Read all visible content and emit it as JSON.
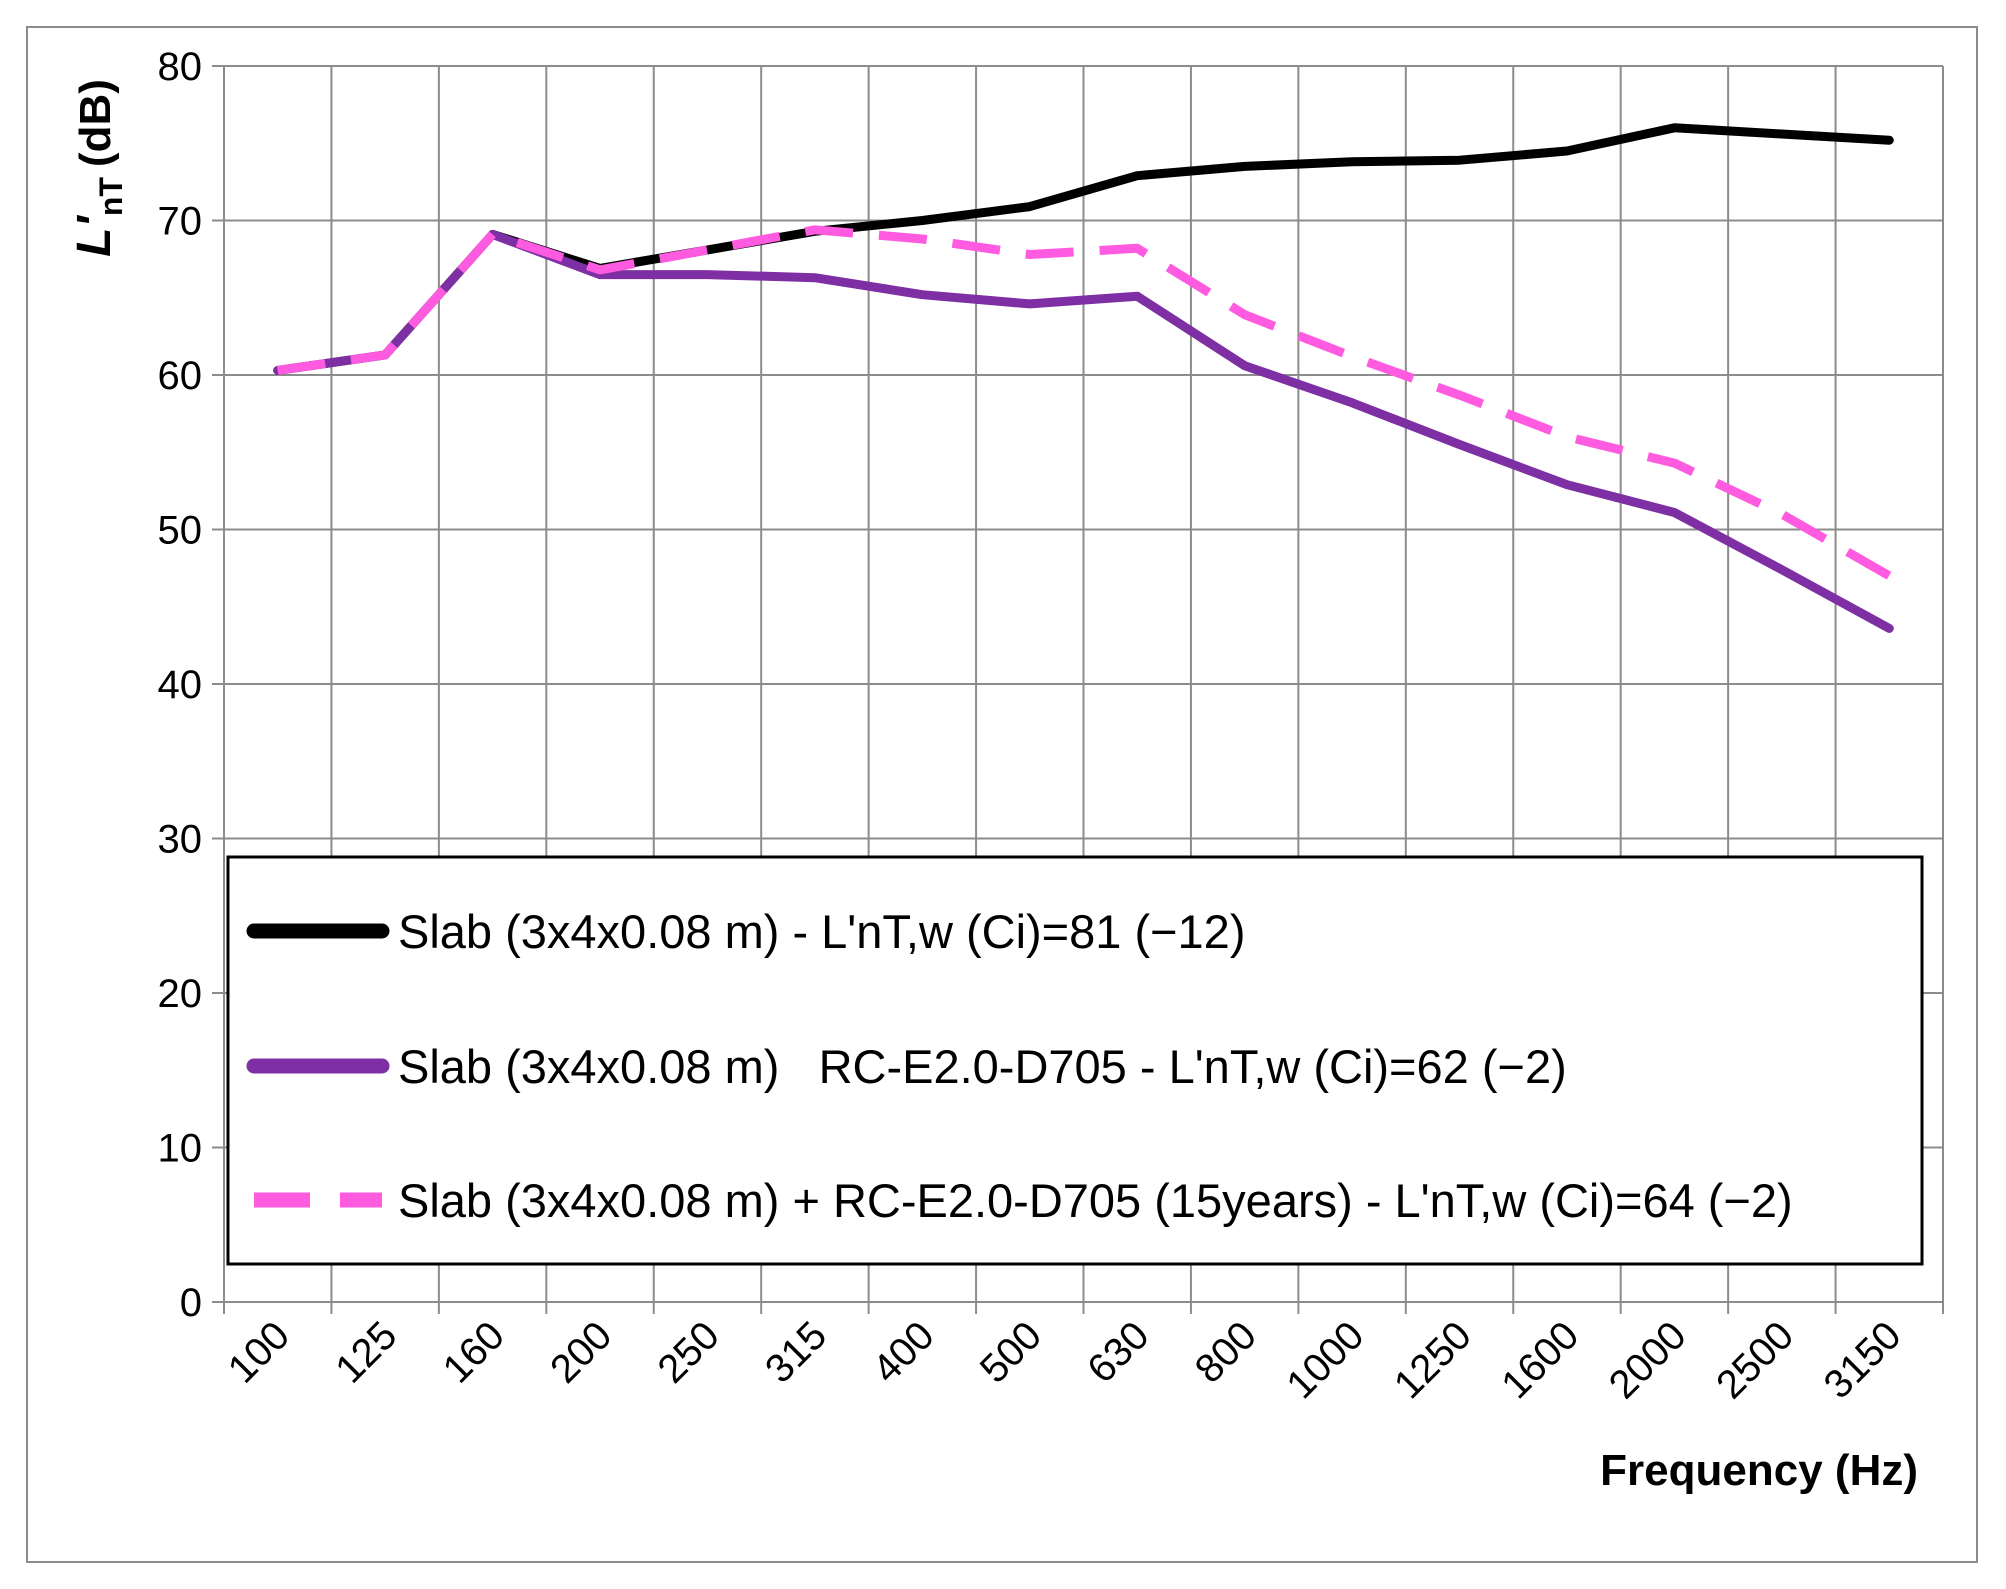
{
  "chart_data": {
    "type": "line",
    "title": "",
    "xlabel": "Frequency (Hz)",
    "ylabel": "L'nT (dB)",
    "ylabel_main": "L'",
    "ylabel_sub": "nT",
    "ylabel_unit": "(dB)",
    "ylim": [
      0,
      80
    ],
    "yticks": [
      0,
      10,
      20,
      30,
      40,
      50,
      60,
      70,
      80
    ],
    "grid": true,
    "legend_position": "bottom-inside",
    "categories": [
      "100",
      "125",
      "160",
      "200",
      "250",
      "315",
      "400",
      "500",
      "630",
      "800",
      "1000",
      "1250",
      "1600",
      "2000",
      "2500",
      "3150"
    ],
    "series": [
      {
        "name": "Slab (3x4x0.08 m) - L'nT,w (Ci)=81 (−12)",
        "color": "#000000",
        "dash": "solid",
        "values": [
          60.3,
          61.3,
          69.1,
          66.9,
          68.1,
          69.3,
          70.0,
          70.9,
          72.9,
          73.5,
          73.8,
          73.9,
          74.5,
          76.0,
          75.6,
          75.2
        ]
      },
      {
        "name": "Slab (3x4x0.08 m)   RC-E2.0-D705 - L'nT,w (Ci)=62 (−2)",
        "color": "#7d2fa3",
        "dash": "solid",
        "values": [
          60.3,
          61.3,
          69.1,
          66.5,
          66.5,
          66.3,
          65.2,
          64.6,
          65.1,
          60.6,
          58.2,
          55.5,
          52.9,
          51.1,
          47.4,
          43.6
        ]
      },
      {
        "name": "Slab (3x4x0.08 m) + RC-E2.0-D705 (15years) - L'nT,w (Ci)=64 (−2)",
        "color": "#ff5be0",
        "dash": "dashed",
        "values": [
          60.3,
          61.3,
          69.1,
          66.8,
          68.1,
          69.4,
          68.8,
          67.8,
          68.2,
          63.9,
          61.2,
          58.7,
          56.0,
          54.3,
          51.0,
          47.0
        ]
      }
    ]
  }
}
